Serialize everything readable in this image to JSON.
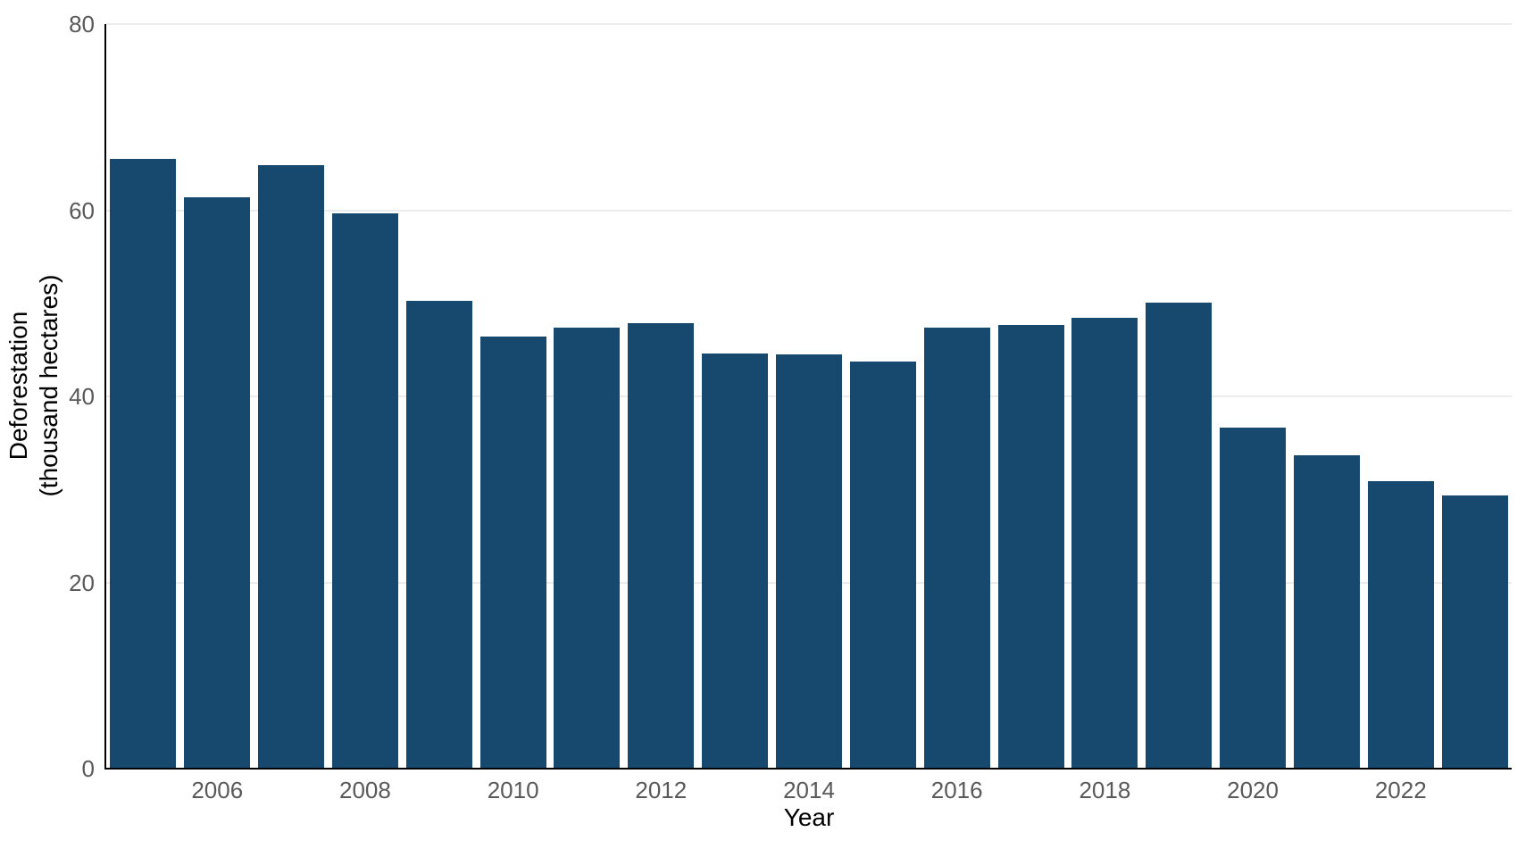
{
  "chart_data": {
    "type": "bar",
    "title": "",
    "xlabel": "Year",
    "ylabel": "Deforestation (thousand hectares)",
    "ylabel_lines": [
      "Deforestation",
      "(thousand hectares)"
    ],
    "categories": [
      "2005",
      "2006",
      "2007",
      "2008",
      "2009",
      "2010",
      "2011",
      "2012",
      "2013",
      "2014",
      "2015",
      "2016",
      "2017",
      "2018",
      "2019",
      "2020",
      "2021",
      "2022",
      "2023"
    ],
    "values": [
      65.5,
      61.4,
      64.8,
      59.7,
      50.3,
      46.4,
      47.4,
      47.9,
      44.6,
      44.5,
      43.7,
      47.4,
      47.7,
      48.4,
      50.1,
      36.6,
      33.7,
      30.9,
      29.4
    ],
    "ylim": [
      0,
      80
    ],
    "yticks": [
      0,
      20,
      40,
      60,
      80
    ],
    "xtick_labels": [
      "2006",
      "2008",
      "2010",
      "2012",
      "2014",
      "2016",
      "2018",
      "2020",
      "2022"
    ],
    "grid": "horizontal",
    "legend": "none",
    "bar_color": "#16496d",
    "grid_color": "#ececec",
    "tick_label_color": "#595959",
    "axis_label_color": "#000000",
    "axis_line_color": "#000000",
    "background_color": "#ffffff"
  }
}
